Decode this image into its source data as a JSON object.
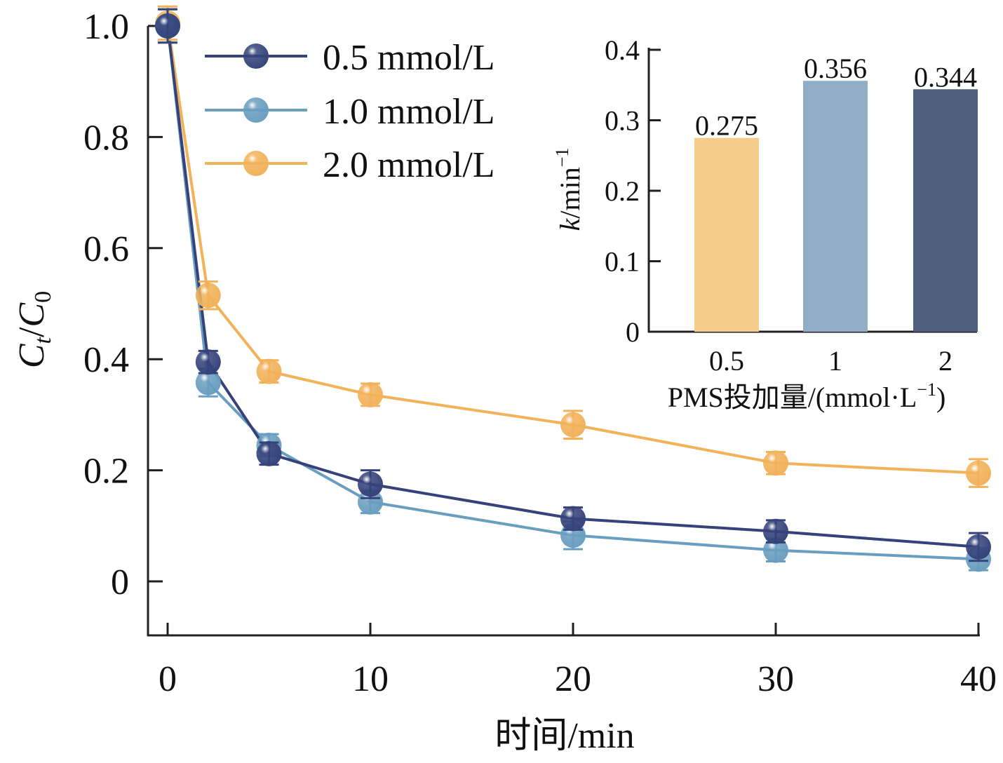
{
  "chart_data": [
    {
      "type": "line",
      "title": "",
      "xlabel": "时间/min",
      "ylabel_parts": {
        "base1": "C",
        "sub1": "t",
        "sep": "/",
        "base2": "C",
        "sub2": "0"
      },
      "ylabel": "Ct/C0",
      "xlim": [
        -1,
        40
      ],
      "ylim": [
        -0.1,
        1.0
      ],
      "x_ticks": [
        0,
        10,
        20,
        30,
        40
      ],
      "x_tick_labels": [
        "0",
        "10",
        "20",
        "30",
        "40"
      ],
      "y_ticks": [
        0,
        0.2,
        0.4,
        0.6,
        0.8,
        1.0
      ],
      "y_tick_labels": [
        "0",
        "0.2",
        "0.4",
        "0.6",
        "0.8",
        "1.0"
      ],
      "grid": false,
      "legend_position": "top-left",
      "x": [
        0,
        2,
        5,
        10,
        20,
        30,
        40
      ],
      "series": [
        {
          "name": "0.5 mmol/L",
          "color": "#35437a",
          "values": [
            1.0,
            0.395,
            0.23,
            0.175,
            0.113,
            0.09,
            0.062
          ],
          "error": [
            0.03,
            0.02,
            0.02,
            0.025,
            0.02,
            0.02,
            0.025
          ]
        },
        {
          "name": "1.0 mmol/L",
          "color": "#6a9ec0",
          "values": [
            1.0,
            0.358,
            0.245,
            0.143,
            0.083,
            0.056,
            0.04
          ],
          "error": [
            0.03,
            0.025,
            0.02,
            0.02,
            0.025,
            0.02,
            0.02
          ]
        },
        {
          "name": "2.0 mmol/L",
          "color": "#f2b25a",
          "values": [
            1.005,
            0.515,
            0.378,
            0.336,
            0.282,
            0.213,
            0.195
          ],
          "error": [
            0.03,
            0.025,
            0.02,
            0.02,
            0.025,
            0.02,
            0.025
          ]
        }
      ]
    },
    {
      "type": "bar",
      "title": "",
      "xlabel": "PMS投加量/(mmol·L",
      "xlabel_sup": "−1",
      "xlabel_close": ")",
      "ylabel_italic": "k",
      "ylabel_rest": "/min",
      "ylabel_sup": "−1",
      "categories": [
        "0.5",
        "1",
        "2"
      ],
      "values": [
        0.275,
        0.356,
        0.344
      ],
      "value_labels": [
        "0.275",
        "0.356",
        "0.344"
      ],
      "colors": [
        "#f5cc8a",
        "#92aec7",
        "#4f5f7e"
      ],
      "ylim": [
        0,
        0.4
      ],
      "y_ticks": [
        0,
        0.1,
        0.2,
        0.3,
        0.4
      ],
      "y_tick_labels": [
        "0",
        "0.1",
        "0.2",
        "0.3",
        "0.4"
      ],
      "grid": false,
      "placement": "top-right inset"
    }
  ]
}
